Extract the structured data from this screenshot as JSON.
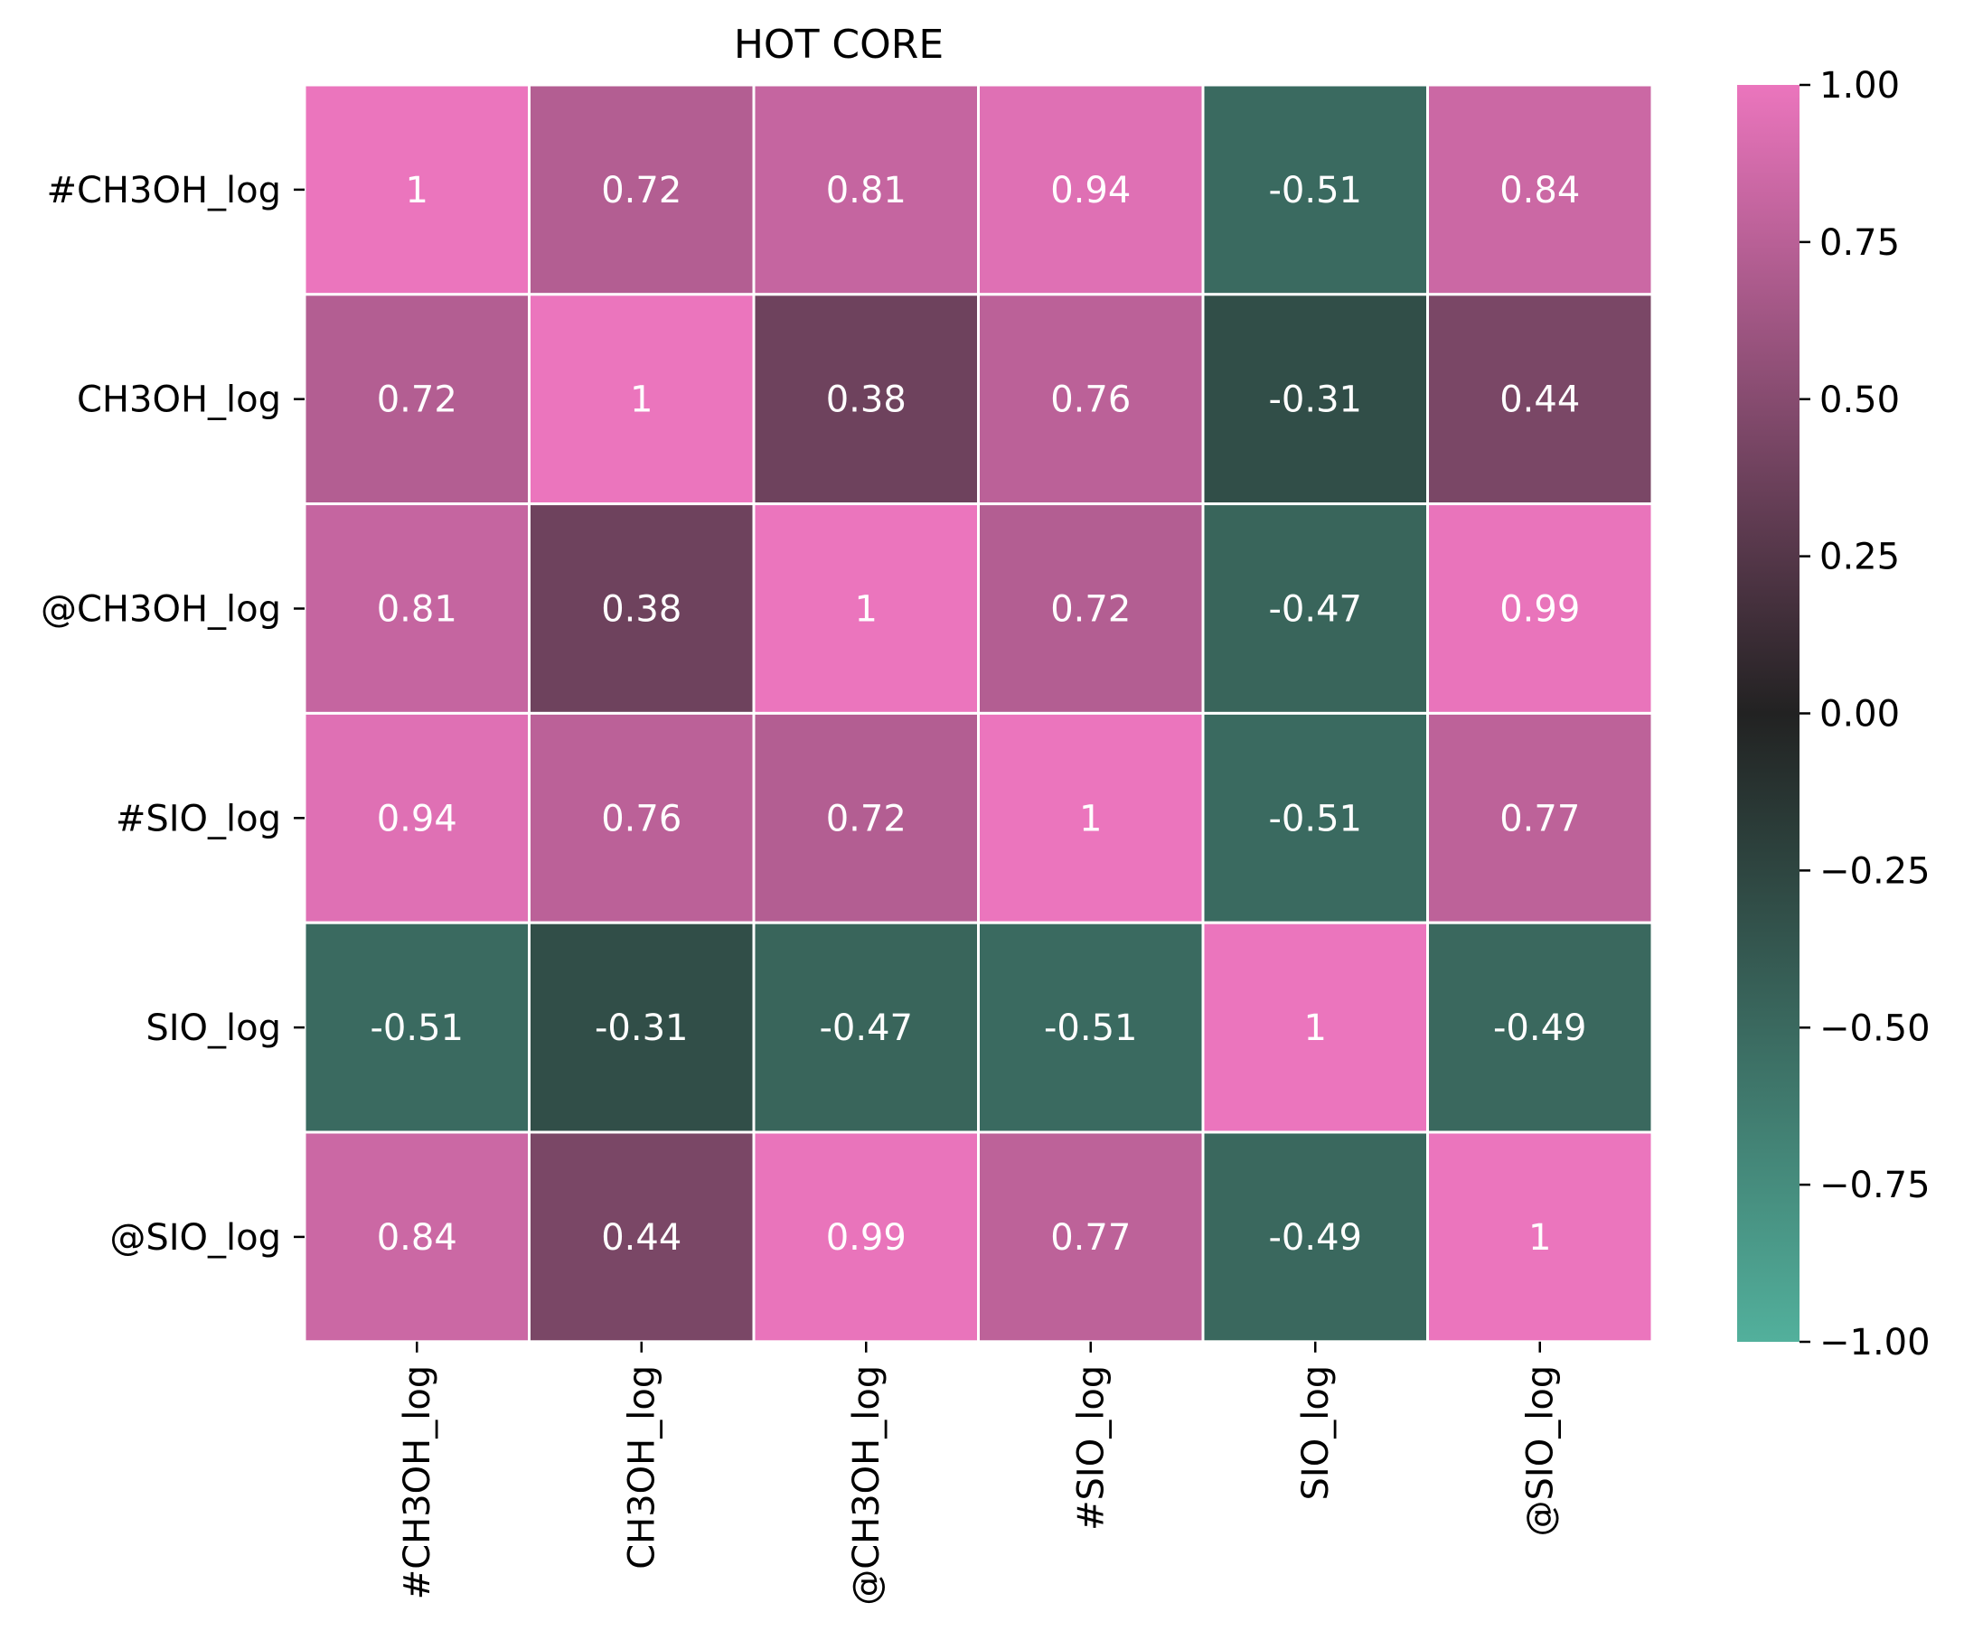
{
  "chart_data": {
    "type": "heatmap",
    "title": "HOT CORE",
    "xlabel": "",
    "ylabel": "",
    "x_categories": [
      "#CH3OH_log",
      "CH3OH_log",
      "@CH3OH_log",
      "#SIO_log",
      "SIO_log",
      "@SIO_log"
    ],
    "y_categories": [
      "#CH3OH_log",
      "CH3OH_log",
      "@CH3OH_log",
      "#SIO_log",
      "SIO_log",
      "@SIO_log"
    ],
    "matrix": [
      [
        1,
        0.72,
        0.81,
        0.94,
        -0.51,
        0.84
      ],
      [
        0.72,
        1,
        0.38,
        0.76,
        -0.31,
        0.44
      ],
      [
        0.81,
        0.38,
        1,
        0.72,
        -0.47,
        0.99
      ],
      [
        0.94,
        0.76,
        0.72,
        1,
        -0.51,
        0.77
      ],
      [
        -0.51,
        -0.31,
        -0.47,
        -0.51,
        1,
        -0.49
      ],
      [
        0.84,
        0.44,
        0.99,
        0.77,
        -0.49,
        1
      ]
    ],
    "cell_labels": [
      [
        "1",
        "0.72",
        "0.81",
        "0.94",
        "-0.51",
        "0.84"
      ],
      [
        "0.72",
        "1",
        "0.38",
        "0.76",
        "-0.31",
        "0.44"
      ],
      [
        "0.81",
        "0.38",
        "1",
        "0.72",
        "-0.47",
        "0.99"
      ],
      [
        "0.94",
        "0.76",
        "0.72",
        "1",
        "-0.51",
        "0.77"
      ],
      [
        "-0.51",
        "-0.31",
        "-0.47",
        "-0.51",
        "1",
        "-0.49"
      ],
      [
        "0.84",
        "0.44",
        "0.99",
        "0.77",
        "-0.49",
        "1"
      ]
    ],
    "colorbar": {
      "range": [
        -1,
        1
      ],
      "ticks": [
        1,
        0.75,
        0.5,
        0.25,
        0,
        -0.25,
        -0.5,
        -0.75,
        -1
      ],
      "tick_labels": [
        "1.00",
        "0.75",
        "0.50",
        "0.25",
        "0.00",
        "−0.25",
        "−0.50",
        "−0.75",
        "−1.00"
      ],
      "color_low": "#52b09c",
      "color_mid": "#222222",
      "color_high": "#eb75bd"
    },
    "grid_line_color": "#ffffff"
  }
}
